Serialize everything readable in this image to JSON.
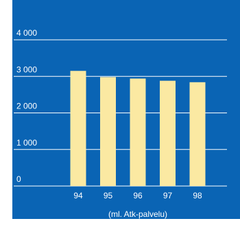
{
  "chart_data": {
    "type": "bar",
    "categories": [
      "94",
      "95",
      "96",
      "97",
      "98"
    ],
    "values": [
      3150,
      2980,
      2940,
      2880,
      2840
    ],
    "title": "",
    "xlabel": "(ml. Atk-palvelu)",
    "ylabel": "",
    "ylim": [
      0,
      4000
    ],
    "yticks": [
      0,
      1000,
      2000,
      3000,
      4000
    ],
    "ytick_labels": [
      "0",
      "1 000",
      "2 000",
      "3 000",
      "4 000"
    ],
    "grid": true,
    "colors": {
      "background": "#0a64b4",
      "bar": "#fbe9a2",
      "grid": "#ffffff",
      "text": "#ffffff"
    }
  }
}
